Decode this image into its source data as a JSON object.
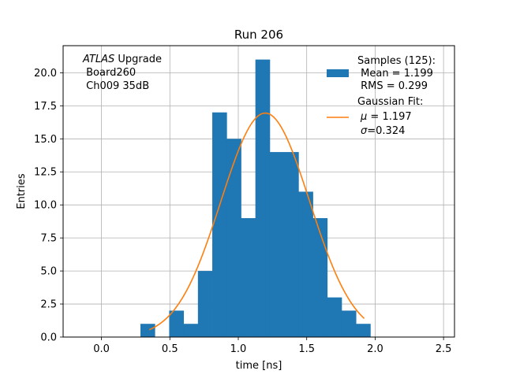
{
  "chart_data": {
    "type": "bar",
    "title": "Run 206",
    "xlabel": "time [ns]",
    "ylabel": "Entries",
    "xlim": [
      -0.28,
      2.58
    ],
    "ylim": [
      0,
      22.05
    ],
    "grid": true,
    "x_ticks": [
      0.0,
      0.5,
      1.0,
      1.5,
      2.0,
      2.5
    ],
    "x_tick_labels": [
      "0.0",
      "0.5",
      "1.0",
      "1.5",
      "2.0",
      "2.5"
    ],
    "y_ticks": [
      0.0,
      2.5,
      5.0,
      7.5,
      10.0,
      12.5,
      15.0,
      17.5,
      20.0
    ],
    "y_tick_labels": [
      "0.0",
      "2.5",
      "5.0",
      "7.5",
      "10.0",
      "12.5",
      "15.0",
      "17.5",
      "20.0"
    ],
    "bin_edges": [
      0.285,
      0.39,
      0.495,
      0.6,
      0.705,
      0.81,
      0.915,
      1.02,
      1.125,
      1.23,
      1.335,
      1.44,
      1.545,
      1.65,
      1.755,
      1.86,
      1.965
    ],
    "counts": [
      1,
      0,
      2,
      1,
      5,
      17,
      15,
      9,
      21,
      14,
      14,
      11,
      9,
      3,
      2,
      1
    ],
    "series": [
      {
        "name": "Samples (125):",
        "type": "histogram",
        "color": "#1f77b4"
      },
      {
        "name": "Gaussian Fit:",
        "type": "line",
        "color": "#ff7f0e",
        "amplitude": 16.95,
        "mu": 1.197,
        "sigma": 0.324,
        "x_range": [
          0.35,
          1.92
        ]
      }
    ],
    "annotation": {
      "line1_italic": "ATLAS",
      "line1_rest": " Upgrade",
      "line2": " Board260",
      "line3": " Ch009 35dB"
    },
    "legend": {
      "position": "top-right",
      "samples_title": "Samples (125):",
      "samples_mean": " Mean = 1.199",
      "samples_rms": " RMS = 0.299",
      "fit_title": "Gaussian Fit:",
      "fit_mu_symbol": "μ",
      "fit_mu_value": " = 1.197",
      "fit_sigma_symbol": "σ",
      "fit_sigma_value": "=0.324"
    }
  }
}
